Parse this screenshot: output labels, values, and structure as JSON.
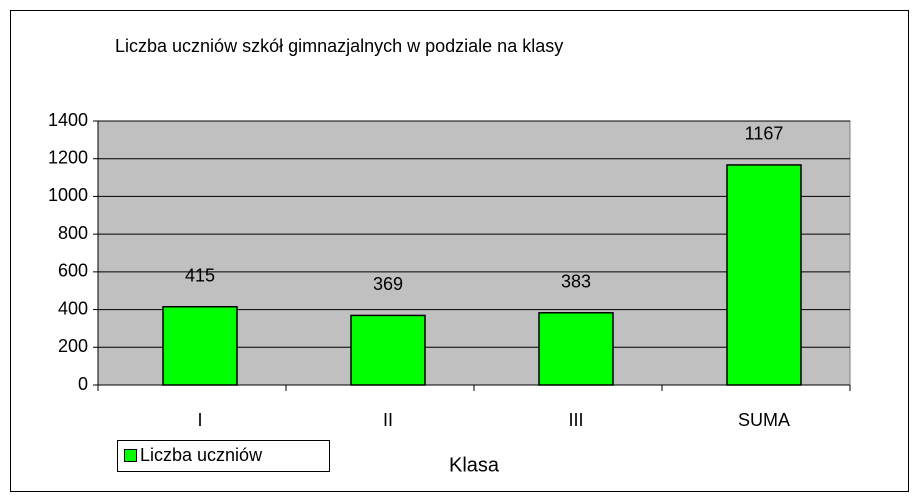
{
  "chart_data": {
    "type": "bar",
    "title": "Liczba uczniów szkół gimnazjalnych w podziale na klasy",
    "categories": [
      "I",
      "II",
      "III",
      "SUMA"
    ],
    "series": [
      {
        "name": "Liczba uczniów",
        "color": "#00ff00",
        "values": [
          415,
          369,
          383,
          1167
        ]
      }
    ],
    "x_label": "Klasa",
    "ylim": [
      0,
      1400
    ],
    "yticks": [
      0,
      200,
      400,
      600,
      800,
      1000,
      1200,
      1400
    ],
    "grid": true,
    "plot_background": "#c0c0c0",
    "legend": "bottom-left"
  }
}
